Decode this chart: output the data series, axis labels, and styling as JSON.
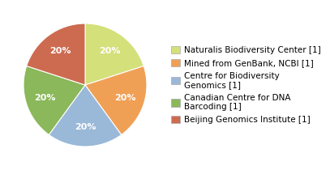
{
  "labels": [
    "Naturalis Biodiversity Center [1]",
    "Mined from GenBank, NCBI [1]",
    "Centre for Biodiversity\nGenomics [1]",
    "Canadian Centre for DNA\nBarcoding [1]",
    "Beijing Genomics Institute [1]"
  ],
  "values": [
    20,
    20,
    20,
    20,
    20
  ],
  "colors": [
    "#d4e07a",
    "#f0a055",
    "#9ab8d8",
    "#8ab85a",
    "#cd6b50"
  ],
  "startangle": 90,
  "background_color": "#ffffff",
  "text_color": "#ffffff",
  "pct_fontsize": 8,
  "legend_fontsize": 7.5
}
